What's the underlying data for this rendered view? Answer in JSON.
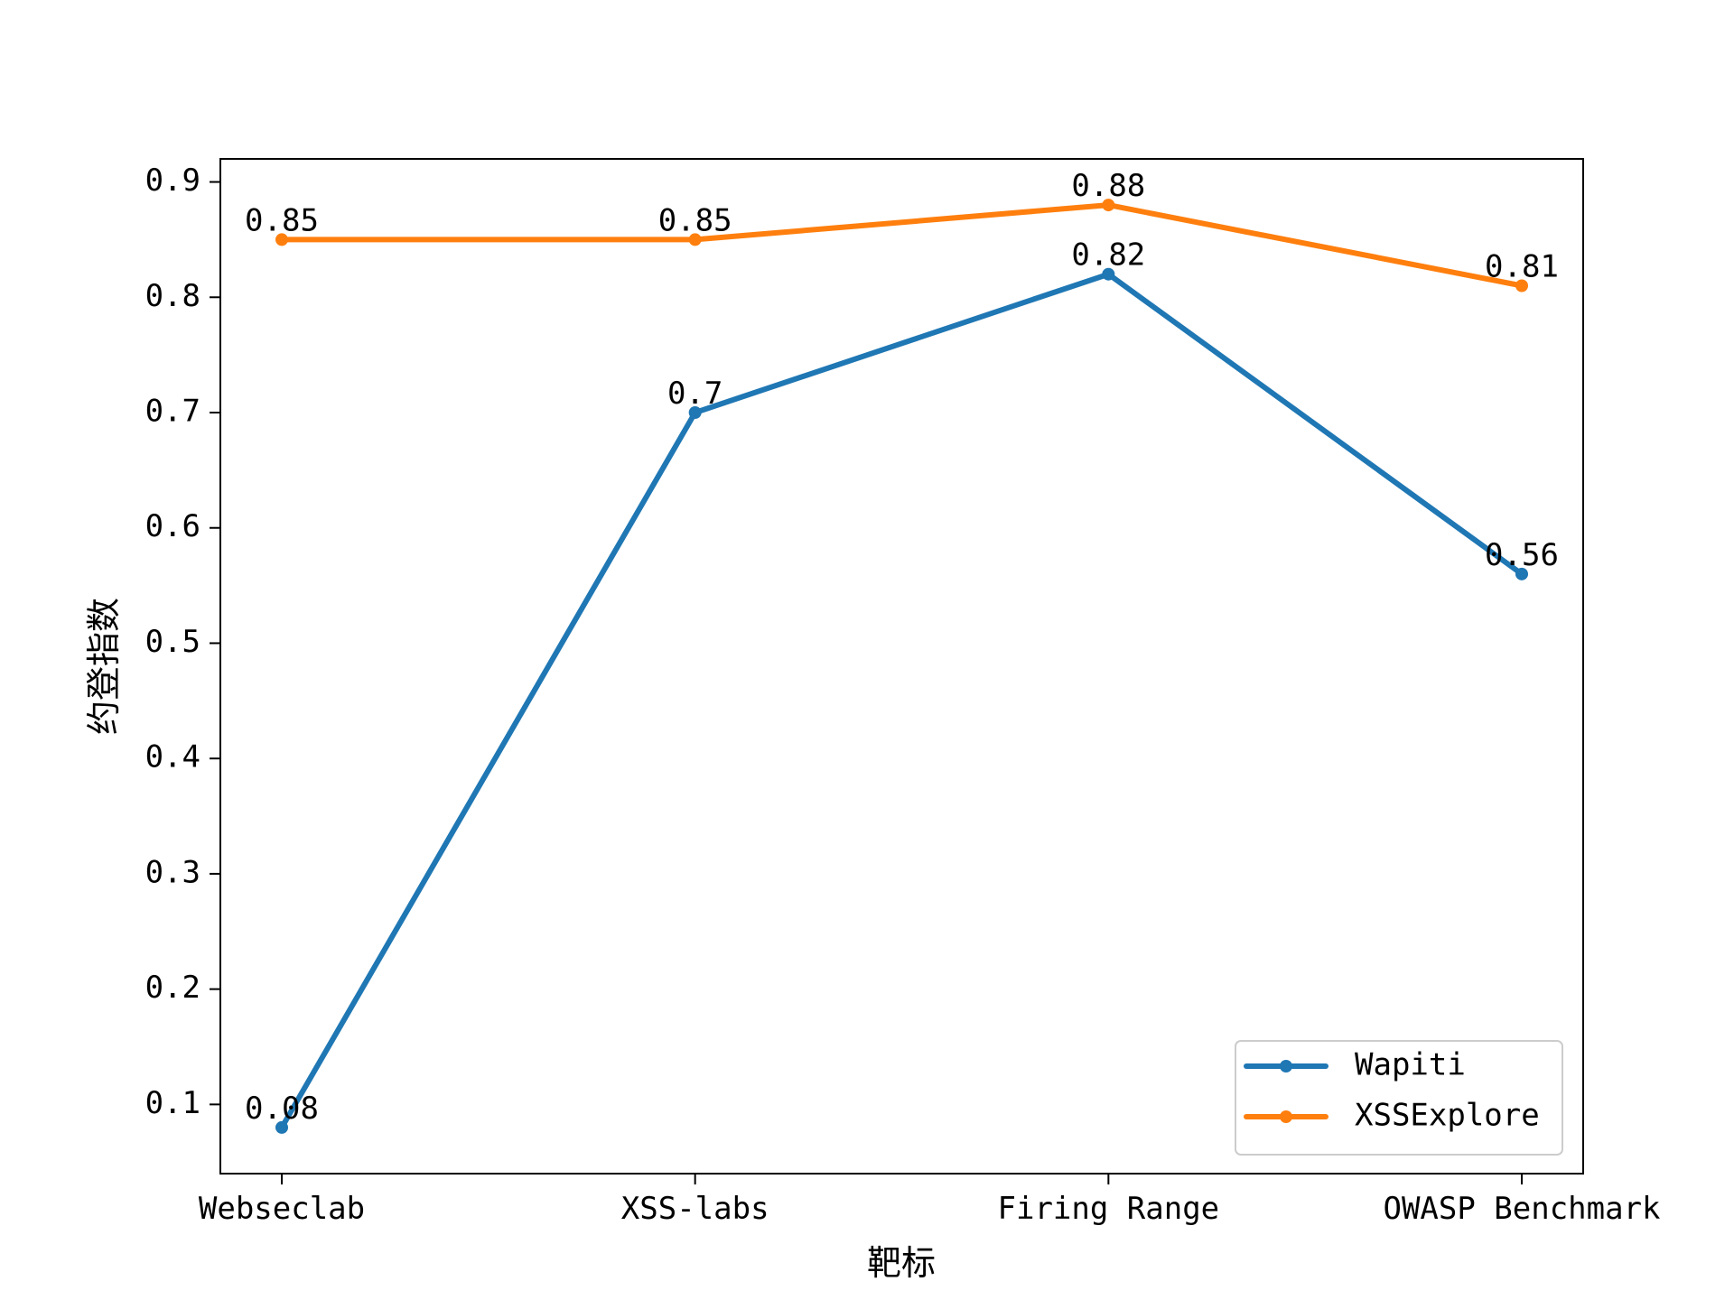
{
  "chart_data": {
    "type": "line",
    "categories": [
      "Webseclab",
      "XSS-labs",
      "Firing Range",
      "OWASP Benchmark"
    ],
    "series": [
      {
        "name": "Wapiti",
        "color": "#1f77b4",
        "values": [
          0.08,
          0.7,
          0.82,
          0.56
        ],
        "labels": [
          "0.08",
          "0.7",
          "0.82",
          "0.56"
        ]
      },
      {
        "name": "XSSExplore",
        "color": "#ff7f0e",
        "values": [
          0.85,
          0.85,
          0.88,
          0.81
        ],
        "labels": [
          "0.85",
          "0.85",
          "0.88",
          "0.81"
        ]
      }
    ],
    "xlabel": "靶标",
    "ylabel": "约登指数",
    "ylim": [
      0.04,
      0.92
    ],
    "yticks": [
      0.1,
      0.2,
      0.3,
      0.4,
      0.5,
      0.6,
      0.7,
      0.8,
      0.9
    ],
    "ytick_labels": [
      "0.1",
      "0.2",
      "0.3",
      "0.4",
      "0.5",
      "0.6",
      "0.7",
      "0.8",
      "0.9"
    ],
    "grid": false,
    "legend_position": "lower-right",
    "marker": "circle"
  }
}
